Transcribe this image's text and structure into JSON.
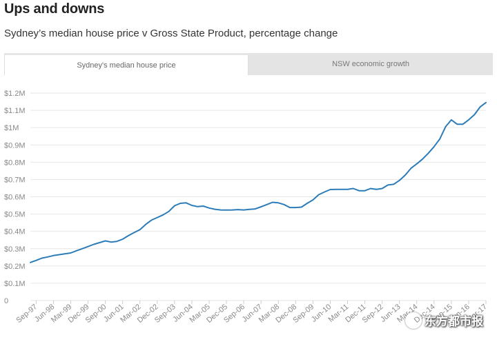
{
  "header": {
    "title": "Ups and downs",
    "subtitle": "Sydney’s median house price v Gross State Product, percentage change"
  },
  "tabs": [
    {
      "label": "Sydney's median house price",
      "active": true
    },
    {
      "label": "NSW economic growth",
      "active": false
    }
  ],
  "watermark": {
    "text": "东方都市报"
  },
  "colors": {
    "line": "#2b7bb9",
    "grid": "#e6e6e6",
    "axis_text": "#888888"
  },
  "chart_data": {
    "type": "line",
    "title": "",
    "xlabel": "",
    "ylabel": "",
    "ylim": [
      0,
      1200000
    ],
    "grid": true,
    "legend": "none",
    "y_ticks": [
      {
        "value": 0,
        "label": "0"
      },
      {
        "value": 100000,
        "label": "$0.1M"
      },
      {
        "value": 200000,
        "label": "$0.2M"
      },
      {
        "value": 300000,
        "label": "$0.3M"
      },
      {
        "value": 400000,
        "label": "$0.4M"
      },
      {
        "value": 500000,
        "label": "$0.5M"
      },
      {
        "value": 600000,
        "label": "$0.6M"
      },
      {
        "value": 700000,
        "label": "$0.7M"
      },
      {
        "value": 800000,
        "label": "$0.8M"
      },
      {
        "value": 900000,
        "label": "$0.9M"
      },
      {
        "value": 1000000,
        "label": "$1M"
      },
      {
        "value": 1100000,
        "label": "$1.1M"
      },
      {
        "value": 1200000,
        "label": "$1.2M"
      }
    ],
    "x_ticks": [
      "Sep-97",
      "Jun-98",
      "Mar-99",
      "Dec-99",
      "Sep-00",
      "Jun-01",
      "Mar-02",
      "Dec-02",
      "Sep-03",
      "Jun-04",
      "Mar-05",
      "Dec-05",
      "Sep-06",
      "Jun-07",
      "Mar-08",
      "Dec-08",
      "Sep-09",
      "Jun-10",
      "Mar-11",
      "Dec-11",
      "Sep-12",
      "Jun-13",
      "Mar-14",
      "Dec-14",
      "Sep-15",
      "Jun-16",
      "Mar-17"
    ],
    "series": [
      {
        "name": "",
        "x": [
          "Jun-97",
          "Sep-97",
          "Dec-97",
          "Mar-98",
          "Jun-98",
          "Sep-98",
          "Dec-98",
          "Mar-99",
          "Jun-99",
          "Sep-99",
          "Dec-99",
          "Mar-00",
          "Jun-00",
          "Sep-00",
          "Dec-00",
          "Mar-01",
          "Jun-01",
          "Sep-01",
          "Dec-01",
          "Mar-02",
          "Jun-02",
          "Sep-02",
          "Dec-02",
          "Mar-03",
          "Jun-03",
          "Sep-03",
          "Dec-03",
          "Mar-04",
          "Jun-04",
          "Sep-04",
          "Dec-04",
          "Mar-05",
          "Jun-05",
          "Sep-05",
          "Dec-05",
          "Mar-06",
          "Jun-06",
          "Sep-06",
          "Dec-06",
          "Mar-07",
          "Jun-07",
          "Sep-07",
          "Dec-07",
          "Mar-08",
          "Jun-08",
          "Sep-08",
          "Dec-08",
          "Mar-09",
          "Jun-09",
          "Sep-09",
          "Dec-09",
          "Mar-10",
          "Jun-10",
          "Sep-10",
          "Dec-10",
          "Mar-11",
          "Jun-11",
          "Sep-11",
          "Dec-11",
          "Mar-12",
          "Jun-12",
          "Sep-12",
          "Dec-12",
          "Mar-13",
          "Jun-13",
          "Sep-13",
          "Dec-13",
          "Mar-14",
          "Jun-14",
          "Sep-14",
          "Dec-14",
          "Mar-15",
          "Jun-15",
          "Sep-15",
          "Dec-15",
          "Mar-16",
          "Jun-16",
          "Sep-16",
          "Dec-16",
          "Mar-17"
        ],
        "values": [
          220000,
          232000,
          245000,
          252000,
          260000,
          265000,
          270000,
          275000,
          288000,
          300000,
          312000,
          325000,
          335000,
          345000,
          338000,
          342000,
          355000,
          375000,
          393000,
          410000,
          440000,
          465000,
          480000,
          495000,
          515000,
          548000,
          562000,
          565000,
          550000,
          543000,
          546000,
          535000,
          528000,
          524000,
          523000,
          524000,
          526000,
          524000,
          527000,
          530000,
          542000,
          555000,
          568000,
          565000,
          555000,
          538000,
          538000,
          540000,
          562000,
          582000,
          612000,
          628000,
          642000,
          643000,
          643000,
          643000,
          648000,
          635000,
          635000,
          648000,
          643000,
          648000,
          668000,
          672000,
          695000,
          725000,
          765000,
          790000,
          818000,
          852000,
          890000,
          935000,
          1005000,
          1045000,
          1020000,
          1020000,
          1045000,
          1075000,
          1120000,
          1145000
        ]
      }
    ]
  }
}
